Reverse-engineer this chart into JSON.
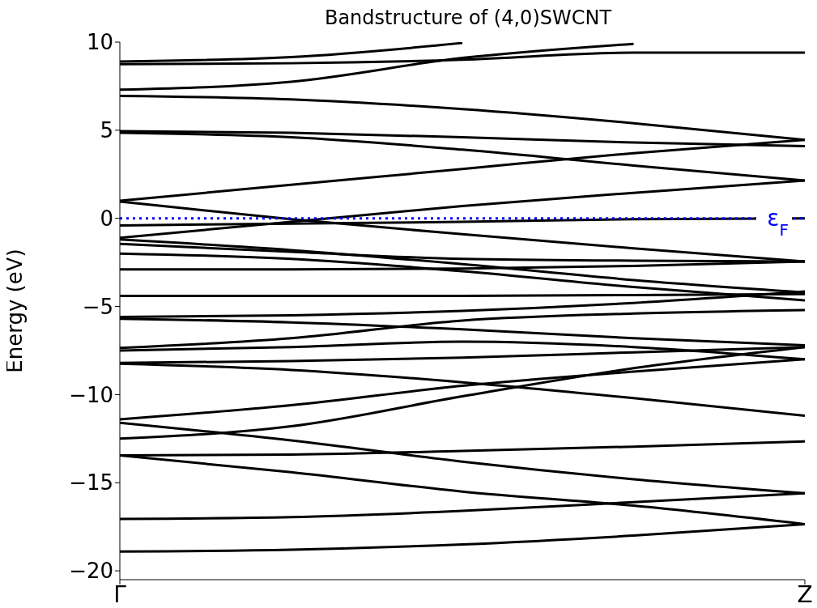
{
  "chart_data": {
    "type": "line",
    "title": "Bandstructure of (4,0)SWCNT",
    "ylabel": "Energy (eV)",
    "categories": [
      "Γ",
      null,
      null,
      null,
      "Z"
    ],
    "ylim": [
      -20.5,
      10
    ],
    "yticks": [
      -20,
      -15,
      -10,
      -5,
      0,
      5,
      10
    ],
    "ref_lines": [
      {
        "axis": "y",
        "value": 0,
        "label": "ε$_{F}$",
        "color": "#0000ff",
        "line_style": "dotted"
      }
    ],
    "series": [
      {
        "color": "#000000",
        "values": [
          8.9,
          9.15,
          9.95,
          null,
          null
        ]
      },
      {
        "color": "#000000",
        "values": [
          8.75,
          8.8,
          9.0,
          9.4,
          9.4
        ]
      },
      {
        "color": "#000000",
        "values": [
          7.3,
          7.75,
          9.1,
          9.9,
          null
        ]
      },
      {
        "color": "#000000",
        "values": [
          6.95,
          6.75,
          6.2,
          5.4,
          4.45
        ]
      },
      {
        "color": "#000000",
        "values": [
          4.95,
          4.85,
          4.6,
          4.3,
          4.1
        ]
      },
      {
        "color": "#000000",
        "values": [
          4.85,
          4.6,
          3.9,
          3.0,
          2.15
        ]
      },
      {
        "color": "#000000",
        "values": [
          1.0,
          1.9,
          2.8,
          3.7,
          4.45
        ]
      },
      {
        "color": "#000000",
        "values": [
          0.95,
          -0.05,
          -0.9,
          -1.7,
          -2.45
        ]
      },
      {
        "color": "#000000",
        "values": [
          -1.1,
          -0.2,
          0.7,
          1.45,
          2.15
        ]
      },
      {
        "color": "#000000",
        "values": [
          -0.4,
          -0.3,
          -0.2,
          -0.05,
          0
        ]
      },
      {
        "color": "#000000",
        "values": [
          -1.2,
          -1.8,
          -2.6,
          -3.5,
          -4.2
        ]
      },
      {
        "color": "#000000",
        "values": [
          -1.45,
          -1.9,
          -2.3,
          -2.4,
          -2.45
        ]
      },
      {
        "color": "#000000",
        "values": [
          -2.0,
          -2.3,
          -3.0,
          -3.9,
          -4.65
        ]
      },
      {
        "color": "#000000",
        "values": [
          -2.9,
          -2.9,
          -2.85,
          -2.7,
          -2.45
        ]
      },
      {
        "color": "#000000",
        "values": [
          -4.4,
          -4.4,
          -4.4,
          -4.35,
          -4.3
        ]
      },
      {
        "color": "#000000",
        "values": [
          -5.6,
          -5.5,
          -5.25,
          -4.8,
          -4.15
        ]
      },
      {
        "color": "#000000",
        "values": [
          -5.7,
          -5.9,
          -6.3,
          -6.8,
          -7.2
        ]
      },
      {
        "color": "#000000",
        "values": [
          -7.35,
          -6.8,
          -5.8,
          -5.4,
          -5.2
        ]
      },
      {
        "color": "#000000",
        "values": [
          -7.5,
          -7.3,
          -7.0,
          -7.3,
          -8.0
        ]
      },
      {
        "color": "#000000",
        "values": [
          -8.2,
          -8.1,
          -7.9,
          -7.6,
          -7.3
        ]
      },
      {
        "color": "#000000",
        "values": [
          -8.25,
          -8.6,
          -9.3,
          -10.2,
          -11.2
        ]
      },
      {
        "color": "#000000",
        "values": [
          -11.4,
          -10.6,
          -9.5,
          -8.7,
          -8.0
        ]
      },
      {
        "color": "#000000",
        "values": [
          -11.6,
          -12.6,
          -13.8,
          -14.8,
          -15.6
        ]
      },
      {
        "color": "#000000",
        "values": [
          -12.5,
          -11.8,
          -10.1,
          -8.5,
          -7.3
        ]
      },
      {
        "color": "#000000",
        "values": [
          -13.45,
          -13.4,
          -13.2,
          -12.95,
          -12.65
        ]
      },
      {
        "color": "#000000",
        "values": [
          -13.45,
          -14.4,
          -15.5,
          -16.3,
          -17.35
        ]
      },
      {
        "color": "#000000",
        "values": [
          -17.05,
          -16.95,
          -16.6,
          -16.1,
          -15.6
        ]
      },
      {
        "color": "#000000",
        "values": [
          -18.9,
          -18.8,
          -18.5,
          -18.0,
          -17.35
        ]
      }
    ]
  }
}
